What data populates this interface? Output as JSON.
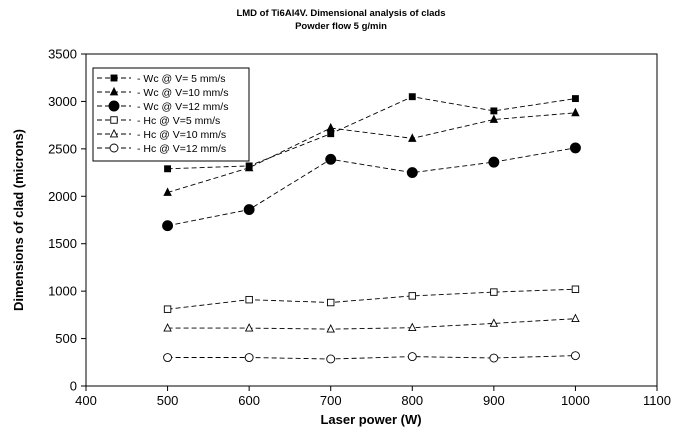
{
  "chart_data": {
    "type": "scatter",
    "title": "LMD of Ti6Al4V. Dimensional analysis of clads",
    "subtitle": "Powder flow 5 g/min",
    "xlabel": "Laser power (W)",
    "ylabel": "Dimensions of clad (microns)",
    "xlim": [
      400,
      1100
    ],
    "ylim": [
      0,
      3500
    ],
    "xticks": [
      400,
      500,
      600,
      700,
      800,
      900,
      1000,
      1100
    ],
    "yticks": [
      0,
      500,
      1000,
      1500,
      2000,
      2500,
      3000,
      3500
    ],
    "grid": false,
    "legend_position": "top-left",
    "line_style": "dashed",
    "series": [
      {
        "name": "Wc @ V= 5 mm/s",
        "marker": "square",
        "filled": true,
        "x": [
          500,
          600,
          700,
          800,
          900,
          1000
        ],
        "y": [
          2290,
          2320,
          2660,
          3050,
          2900,
          3030
        ]
      },
      {
        "name": "Wc @ V=10 mm/s",
        "marker": "triangle",
        "filled": true,
        "x": [
          500,
          600,
          700,
          800,
          900,
          1000
        ],
        "y": [
          2040,
          2300,
          2720,
          2610,
          2810,
          2880
        ]
      },
      {
        "name": "Wc @ V=12 mm/s",
        "marker": "circle",
        "filled": true,
        "x": [
          500,
          600,
          700,
          800,
          900,
          1000
        ],
        "y": [
          1690,
          1860,
          2390,
          2250,
          2360,
          2510
        ]
      },
      {
        "name": "Hc @ V=5 mm/s",
        "marker": "square",
        "filled": false,
        "x": [
          500,
          600,
          700,
          800,
          900,
          1000
        ],
        "y": [
          810,
          910,
          880,
          950,
          990,
          1020
        ]
      },
      {
        "name": "Hc @ V=10 mm/s",
        "marker": "triangle",
        "filled": false,
        "x": [
          500,
          600,
          700,
          800,
          900,
          1000
        ],
        "y": [
          610,
          610,
          600,
          615,
          660,
          710
        ]
      },
      {
        "name": "Hc @ V=12 mm/s",
        "marker": "circle",
        "filled": false,
        "x": [
          500,
          600,
          700,
          800,
          900,
          1000
        ],
        "y": [
          300,
          300,
          285,
          310,
          295,
          320
        ]
      }
    ]
  }
}
